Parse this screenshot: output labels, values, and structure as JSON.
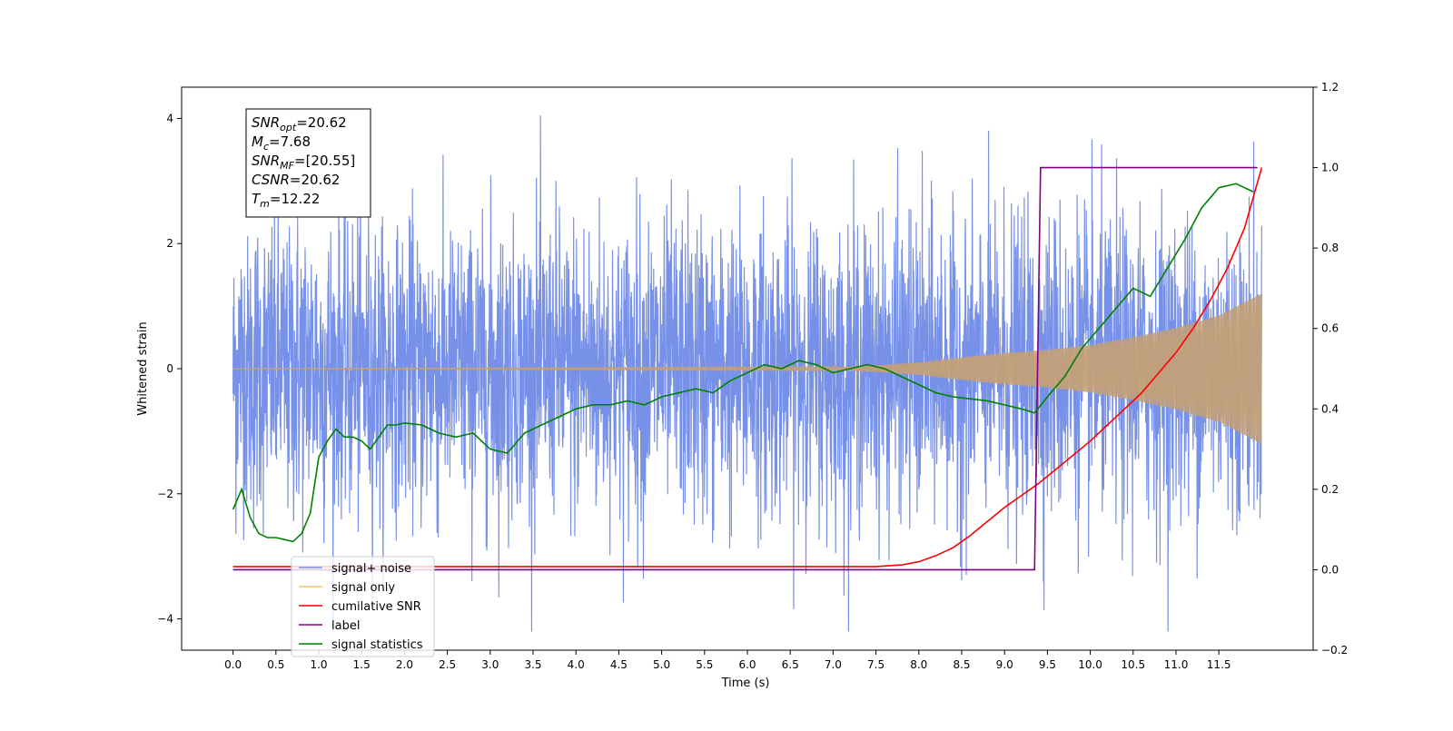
{
  "chart_data": {
    "type": "line",
    "title": "",
    "xlabel": "Time (s)",
    "ylabel": "Whitened strain",
    "ylabel_right": "",
    "xlim": [
      -0.6,
      12.6
    ],
    "ylim": [
      -4.5,
      4.5
    ],
    "ylim_right": [
      -0.2,
      1.2
    ],
    "x_ticks": [
      "0.0",
      "0.5",
      "1.0",
      "1.5",
      "2.0",
      "2.5",
      "3.0",
      "3.5",
      "4.0",
      "4.5",
      "5.0",
      "5.5",
      "6.0",
      "6.5",
      "7.0",
      "7.5",
      "8.0",
      "8.5",
      "9.0",
      "9.5",
      "10.0",
      "10.5",
      "11.0",
      "11.5"
    ],
    "y_ticks": [
      "4",
      "2",
      "0",
      "−2",
      "−4"
    ],
    "y_ticks_right": [
      "1.2",
      "1.0",
      "0.8",
      "0.6",
      "0.4",
      "0.2",
      "0.0",
      "−0.2"
    ],
    "grid": false,
    "legend": {
      "placement": "lower-left",
      "entries": [
        {
          "label": "signal+ noise",
          "color": "#7791e8"
        },
        {
          "label": "signal only",
          "color": "#ffbf60"
        },
        {
          "label": "cumilative SNR",
          "color": "#ff0000"
        },
        {
          "label": "label",
          "color": "#800080"
        },
        {
          "label": "signal statistics",
          "color": "#008000"
        }
      ]
    },
    "annotation": {
      "lines": [
        {
          "sym": "SNR",
          "sub": "opt",
          "value": "=20.62"
        },
        {
          "sym": "M",
          "sub": "c",
          "value": "=7.68"
        },
        {
          "sym": "SNR",
          "sub": "MF",
          "value": "=[20.55]"
        },
        {
          "sym": "CSNR",
          "sub": "",
          "value": "=20.62"
        },
        {
          "sym": "T",
          "sub": "m",
          "value": "=12.22"
        }
      ]
    },
    "series": [
      {
        "name": "signal+ noise",
        "axis": "left",
        "color": "#7791e8",
        "noise": {
          "x_start": 0.0,
          "x_end": 12.0,
          "base_amplitude": 1.5,
          "peak_values": [
            4.1,
            3.9,
            3.85,
            -4.1,
            -3.9,
            -3.5
          ]
        }
      },
      {
        "name": "signal only",
        "axis": "left",
        "color": "#c4a078",
        "envelope": {
          "x": [
            0.0,
            7.0,
            7.5,
            8.0,
            8.5,
            9.0,
            9.5,
            10.0,
            10.5,
            11.0,
            11.5,
            12.0
          ],
          "amplitude": [
            0.0,
            0.02,
            0.05,
            0.1,
            0.18,
            0.25,
            0.3,
            0.38,
            0.5,
            0.65,
            0.85,
            1.2
          ]
        }
      },
      {
        "name": "cumilative SNR",
        "axis": "right",
        "color": "#ff0000",
        "x": [
          0.0,
          7.5,
          7.8,
          8.0,
          8.2,
          8.4,
          8.6,
          8.8,
          9.0,
          9.2,
          9.4,
          9.6,
          9.8,
          10.0,
          10.2,
          10.4,
          10.6,
          10.8,
          11.0,
          11.2,
          11.4,
          11.6,
          11.8,
          12.0
        ],
        "values": [
          0.008,
          0.008,
          0.012,
          0.02,
          0.035,
          0.055,
          0.085,
          0.12,
          0.155,
          0.185,
          0.215,
          0.25,
          0.285,
          0.32,
          0.36,
          0.4,
          0.44,
          0.49,
          0.54,
          0.6,
          0.67,
          0.75,
          0.85,
          1.0
        ]
      },
      {
        "name": "label",
        "axis": "right",
        "color": "#800080",
        "x": [
          0.0,
          9.35,
          9.42,
          11.95
        ],
        "values": [
          0.0,
          0.0,
          1.0,
          1.0
        ]
      },
      {
        "name": "signal statistics",
        "axis": "right",
        "color": "#008000",
        "x": [
          0.0,
          0.1,
          0.2,
          0.3,
          0.4,
          0.5,
          0.6,
          0.7,
          0.8,
          0.9,
          1.0,
          1.1,
          1.2,
          1.3,
          1.4,
          1.5,
          1.6,
          1.7,
          1.8,
          1.9,
          2.0,
          2.2,
          2.4,
          2.6,
          2.8,
          3.0,
          3.2,
          3.4,
          3.6,
          3.8,
          4.0,
          4.2,
          4.4,
          4.6,
          4.8,
          5.0,
          5.2,
          5.4,
          5.6,
          5.8,
          6.0,
          6.2,
          6.4,
          6.6,
          6.8,
          7.0,
          7.2,
          7.4,
          7.6,
          7.8,
          8.0,
          8.2,
          8.4,
          8.6,
          8.8,
          9.0,
          9.2,
          9.35,
          9.5,
          9.7,
          9.9,
          10.1,
          10.3,
          10.5,
          10.7,
          10.9,
          11.1,
          11.3,
          11.5,
          11.7,
          11.9
        ],
        "values": [
          0.15,
          0.2,
          0.13,
          0.09,
          0.08,
          0.08,
          0.075,
          0.07,
          0.09,
          0.14,
          0.28,
          0.32,
          0.35,
          0.33,
          0.33,
          0.32,
          0.3,
          0.33,
          0.36,
          0.36,
          0.365,
          0.36,
          0.34,
          0.33,
          0.34,
          0.3,
          0.29,
          0.34,
          0.36,
          0.38,
          0.4,
          0.41,
          0.41,
          0.42,
          0.41,
          0.43,
          0.44,
          0.45,
          0.44,
          0.47,
          0.49,
          0.51,
          0.5,
          0.52,
          0.51,
          0.49,
          0.5,
          0.51,
          0.5,
          0.48,
          0.46,
          0.44,
          0.43,
          0.425,
          0.42,
          0.41,
          0.4,
          0.39,
          0.43,
          0.48,
          0.55,
          0.6,
          0.65,
          0.7,
          0.68,
          0.75,
          0.82,
          0.9,
          0.95,
          0.96,
          0.94
        ]
      }
    ]
  }
}
